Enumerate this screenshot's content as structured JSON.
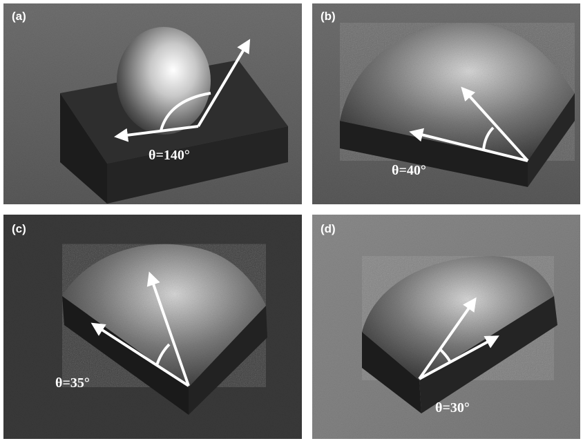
{
  "panels": [
    {
      "label": "(a)",
      "angle": "θ=140°"
    },
    {
      "label": "(b)",
      "angle": "θ=40°"
    },
    {
      "label": "(c)",
      "angle": "θ=35°"
    },
    {
      "label": "(d)",
      "angle": "θ=30°"
    }
  ]
}
